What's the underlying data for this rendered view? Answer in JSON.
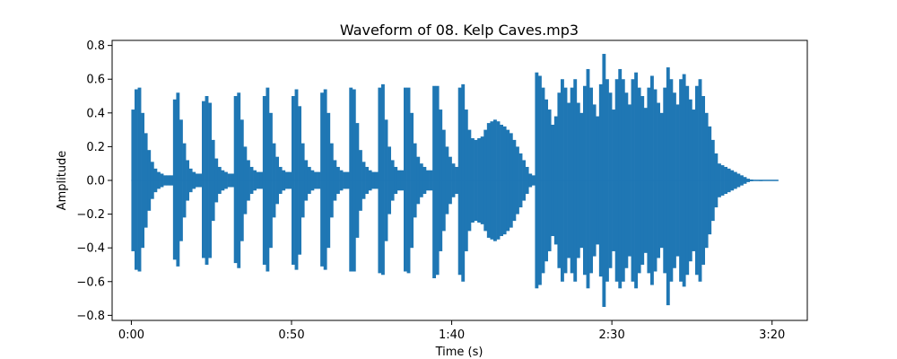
{
  "chart_data": {
    "type": "line",
    "title": "Waveform of 08. Kelp Caves.mp3",
    "xlabel": "Time (s)",
    "ylabel": "Amplitude",
    "xlim": [
      -6,
      211
    ],
    "ylim": [
      -0.83,
      0.83
    ],
    "x_ticks": [
      0,
      50,
      100,
      150,
      200
    ],
    "x_tick_labels": [
      "0:00",
      "0:50",
      "1:40",
      "2:30",
      "3:20"
    ],
    "y_ticks": [
      0.8,
      0.6,
      0.4,
      0.2,
      0.0,
      -0.2,
      -0.4,
      -0.6,
      -0.8
    ],
    "y_tick_labels": [
      "0.8",
      "0.6",
      "0.4",
      "0.2",
      "0.0",
      "−0.2",
      "−0.4",
      "−0.6",
      "−0.8"
    ],
    "grid": false,
    "series": [
      {
        "color": "#1f77b4",
        "envelope": {
          "x_seconds": [
            0,
            1,
            2,
            3,
            4,
            5,
            6,
            7,
            8,
            9,
            10,
            11,
            12,
            13,
            14,
            15,
            16,
            17,
            18,
            19,
            20,
            21,
            22,
            23,
            24,
            25,
            26,
            27,
            28,
            29,
            30,
            31,
            32,
            33,
            34,
            35,
            36,
            37,
            38,
            39,
            40,
            41,
            42,
            43,
            44,
            45,
            46,
            47,
            48,
            49,
            50,
            51,
            52,
            53,
            54,
            55,
            56,
            57,
            58,
            59,
            60,
            61,
            62,
            63,
            64,
            65,
            66,
            67,
            68,
            69,
            70,
            71,
            72,
            73,
            74,
            75,
            76,
            77,
            78,
            79,
            80,
            81,
            82,
            83,
            84,
            85,
            86,
            87,
            88,
            89,
            90,
            91,
            92,
            93,
            94,
            95,
            96,
            97,
            98,
            99,
            100,
            101,
            102,
            103,
            104,
            105,
            106,
            107,
            108,
            109,
            110,
            111,
            112,
            113,
            114,
            115,
            116,
            117,
            118,
            119,
            120,
            121,
            122,
            123,
            124,
            125,
            126,
            127,
            128,
            129,
            130,
            131,
            132,
            133,
            134,
            135,
            136,
            137,
            138,
            139,
            140,
            141,
            142,
            143,
            144,
            145,
            146,
            147,
            148,
            149,
            150,
            151,
            152,
            153,
            154,
            155,
            156,
            157,
            158,
            159,
            160,
            161,
            162,
            163,
            164,
            165,
            166,
            167,
            168,
            169,
            170,
            171,
            172,
            173,
            174,
            175,
            176,
            177,
            178,
            179,
            180,
            181,
            182,
            183,
            184,
            185,
            186,
            187,
            188,
            189,
            190,
            191,
            192,
            193,
            194,
            195,
            196,
            197,
            198,
            199,
            200,
            201
          ],
          "max": [
            0.42,
            0.54,
            0.55,
            0.4,
            0.28,
            0.18,
            0.11,
            0.07,
            0.05,
            0.04,
            0.03,
            0.03,
            0.03,
            0.48,
            0.52,
            0.36,
            0.22,
            0.12,
            0.07,
            0.05,
            0.04,
            0.04,
            0.47,
            0.5,
            0.46,
            0.24,
            0.13,
            0.08,
            0.06,
            0.05,
            0.04,
            0.04,
            0.5,
            0.52,
            0.36,
            0.2,
            0.12,
            0.08,
            0.06,
            0.05,
            0.05,
            0.5,
            0.55,
            0.4,
            0.22,
            0.14,
            0.08,
            0.06,
            0.05,
            0.05,
            0.5,
            0.54,
            0.44,
            0.22,
            0.12,
            0.08,
            0.06,
            0.05,
            0.05,
            0.52,
            0.54,
            0.4,
            0.22,
            0.12,
            0.08,
            0.06,
            0.05,
            0.05,
            0.55,
            0.54,
            0.34,
            0.18,
            0.11,
            0.08,
            0.06,
            0.05,
            0.05,
            0.55,
            0.57,
            0.36,
            0.2,
            0.12,
            0.08,
            0.06,
            0.06,
            0.55,
            0.55,
            0.4,
            0.22,
            0.14,
            0.1,
            0.08,
            0.06,
            0.06,
            0.56,
            0.56,
            0.42,
            0.3,
            0.2,
            0.14,
            0.1,
            0.08,
            0.55,
            0.57,
            0.42,
            0.3,
            0.25,
            0.24,
            0.25,
            0.26,
            0.3,
            0.34,
            0.35,
            0.36,
            0.35,
            0.33,
            0.32,
            0.3,
            0.28,
            0.24,
            0.2,
            0.16,
            0.12,
            0.08,
            0.04,
            0.03,
            0.64,
            0.62,
            0.55,
            0.48,
            0.42,
            0.33,
            0.38,
            0.52,
            0.6,
            0.55,
            0.46,
            0.55,
            0.6,
            0.46,
            0.4,
            0.56,
            0.66,
            0.55,
            0.45,
            0.38,
            0.57,
            0.75,
            0.6,
            0.52,
            0.42,
            0.6,
            0.66,
            0.6,
            0.52,
            0.45,
            0.6,
            0.64,
            0.55,
            0.5,
            0.43,
            0.55,
            0.62,
            0.54,
            0.46,
            0.4,
            0.55,
            0.67,
            0.6,
            0.52,
            0.45,
            0.6,
            0.63,
            0.56,
            0.48,
            0.42,
            0.56,
            0.6,
            0.5,
            0.4,
            0.32,
            0.24,
            0.16,
            0.1,
            0.09,
            0.08,
            0.07,
            0.06,
            0.05,
            0.04,
            0.03,
            0.02,
            0.01,
            0.005,
            0.003,
            0.002,
            0.001
          ],
          "min": [
            -0.42,
            -0.53,
            -0.54,
            -0.4,
            -0.28,
            -0.18,
            -0.11,
            -0.07,
            -0.05,
            -0.04,
            -0.03,
            -0.03,
            -0.03,
            -0.47,
            -0.51,
            -0.36,
            -0.22,
            -0.12,
            -0.07,
            -0.05,
            -0.04,
            -0.04,
            -0.46,
            -0.5,
            -0.46,
            -0.24,
            -0.13,
            -0.08,
            -0.06,
            -0.05,
            -0.04,
            -0.04,
            -0.49,
            -0.52,
            -0.36,
            -0.2,
            -0.12,
            -0.08,
            -0.06,
            -0.05,
            -0.05,
            -0.5,
            -0.54,
            -0.4,
            -0.22,
            -0.14,
            -0.08,
            -0.06,
            -0.05,
            -0.05,
            -0.5,
            -0.53,
            -0.44,
            -0.22,
            -0.12,
            -0.08,
            -0.06,
            -0.05,
            -0.05,
            -0.51,
            -0.53,
            -0.4,
            -0.22,
            -0.12,
            -0.08,
            -0.06,
            -0.05,
            -0.05,
            -0.54,
            -0.54,
            -0.34,
            -0.18,
            -0.11,
            -0.08,
            -0.06,
            -0.05,
            -0.05,
            -0.55,
            -0.56,
            -0.36,
            -0.2,
            -0.12,
            -0.08,
            -0.06,
            -0.06,
            -0.54,
            -0.55,
            -0.4,
            -0.22,
            -0.14,
            -0.1,
            -0.08,
            -0.06,
            -0.06,
            -0.58,
            -0.56,
            -0.42,
            -0.3,
            -0.2,
            -0.14,
            -0.1,
            -0.08,
            -0.56,
            -0.6,
            -0.42,
            -0.3,
            -0.25,
            -0.24,
            -0.25,
            -0.26,
            -0.3,
            -0.34,
            -0.35,
            -0.36,
            -0.35,
            -0.33,
            -0.32,
            -0.3,
            -0.28,
            -0.24,
            -0.2,
            -0.16,
            -0.12,
            -0.08,
            -0.04,
            -0.03,
            -0.64,
            -0.62,
            -0.55,
            -0.48,
            -0.42,
            -0.33,
            -0.38,
            -0.52,
            -0.6,
            -0.55,
            -0.46,
            -0.55,
            -0.6,
            -0.46,
            -0.4,
            -0.56,
            -0.64,
            -0.55,
            -0.45,
            -0.38,
            -0.57,
            -0.75,
            -0.6,
            -0.52,
            -0.42,
            -0.6,
            -0.64,
            -0.6,
            -0.52,
            -0.45,
            -0.6,
            -0.64,
            -0.55,
            -0.5,
            -0.43,
            -0.55,
            -0.62,
            -0.54,
            -0.46,
            -0.4,
            -0.55,
            -0.74,
            -0.6,
            -0.52,
            -0.45,
            -0.6,
            -0.63,
            -0.56,
            -0.48,
            -0.42,
            -0.56,
            -0.6,
            -0.5,
            -0.4,
            -0.32,
            -0.24,
            -0.16,
            -0.1,
            -0.09,
            -0.08,
            -0.07,
            -0.06,
            -0.05,
            -0.04,
            -0.03,
            -0.02,
            -0.01,
            -0.005,
            -0.003,
            -0.002,
            -0.001
          ]
        }
      }
    ]
  }
}
